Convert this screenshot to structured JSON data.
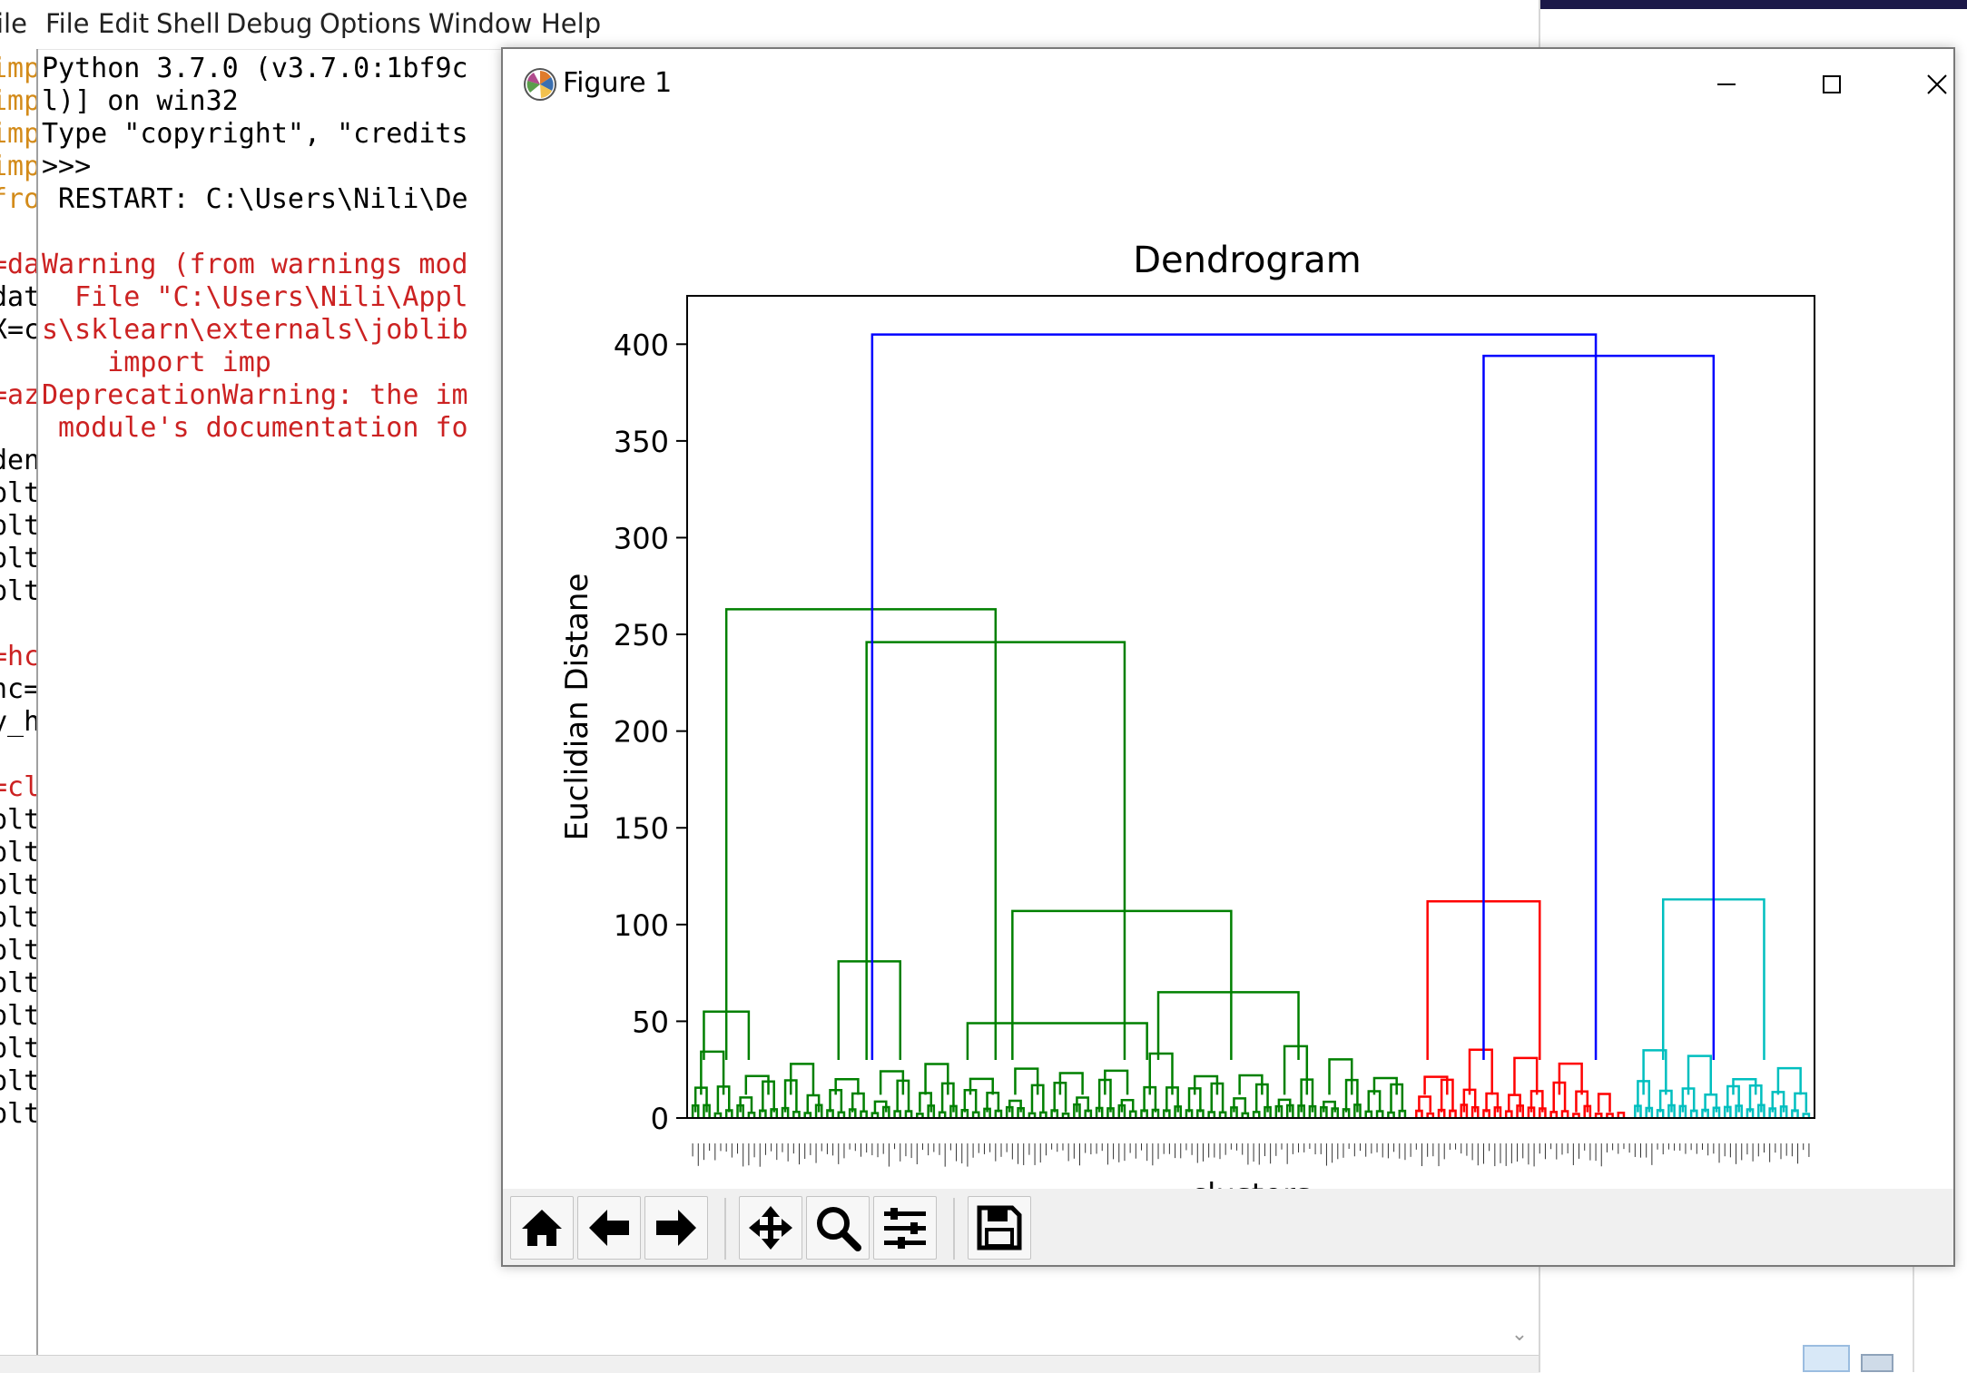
{
  "shell": {
    "menu": [
      "ile",
      "File",
      "Edit",
      "Shell",
      "Debug",
      "Options",
      "Window",
      "Help"
    ],
    "gutter": [
      {
        "text": "imp",
        "color": "orange"
      },
      {
        "text": "imp",
        "color": "orange"
      },
      {
        "text": "imp",
        "color": "orange"
      },
      {
        "text": "imp",
        "color": "orange"
      },
      {
        "text": "fro",
        "color": "orange"
      },
      {
        "text": "",
        "color": "black"
      },
      {
        "text": "=da",
        "color": "red"
      },
      {
        "text": "dat",
        "color": "black"
      },
      {
        "text": "X=c",
        "color": "black"
      },
      {
        "text": "",
        "color": "black"
      },
      {
        "text": "=az",
        "color": "red"
      },
      {
        "text": "",
        "color": "black"
      },
      {
        "text": "den",
        "color": "black"
      },
      {
        "text": "plt",
        "color": "black"
      },
      {
        "text": "plt",
        "color": "black"
      },
      {
        "text": "plt",
        "color": "black"
      },
      {
        "text": "plt",
        "color": "black"
      },
      {
        "text": "",
        "color": "black"
      },
      {
        "text": "=hc",
        "color": "red"
      },
      {
        "text": "hc=",
        "color": "black"
      },
      {
        "text": "y_h",
        "color": "black"
      },
      {
        "text": "",
        "color": "black"
      },
      {
        "text": "=cl",
        "color": "red"
      },
      {
        "text": "plt",
        "color": "black"
      },
      {
        "text": "plt",
        "color": "black"
      },
      {
        "text": "plt",
        "color": "black"
      },
      {
        "text": "plt",
        "color": "black"
      },
      {
        "text": "plt",
        "color": "black"
      },
      {
        "text": "plt",
        "color": "black"
      },
      {
        "text": "plt",
        "color": "black"
      },
      {
        "text": "plt",
        "color": "black"
      },
      {
        "text": "plt",
        "color": "black"
      },
      {
        "text": "plt",
        "color": "black"
      }
    ],
    "lines": [
      {
        "text": "Python 3.7.0 (v3.7.0:1bf9c",
        "color": "black"
      },
      {
        "text": "l)] on win32",
        "color": "black"
      },
      {
        "text": "Type \"copyright\", \"credits",
        "color": "black"
      },
      {
        "text": ">>> ",
        "color": "black"
      },
      {
        "text": " RESTART: C:\\Users\\Nili\\De",
        "color": "black"
      },
      {
        "text": "",
        "color": "black"
      },
      {
        "text": "Warning (from warnings mod",
        "color": "red"
      },
      {
        "text": "  File \"C:\\Users\\Nili\\Appl",
        "color": "red"
      },
      {
        "text": "s\\sklearn\\externals\\joblib",
        "color": "red"
      },
      {
        "text": "    import imp",
        "color": "red"
      },
      {
        "text": "DeprecationWarning: the im",
        "color": "red"
      },
      {
        "text": " module's documentation fo",
        "color": "red"
      }
    ]
  },
  "figure": {
    "window_title": "Figure 1",
    "controls": {
      "minimize": "minimize",
      "maximize": "maximize",
      "close": "close"
    },
    "toolbar": [
      "home-icon",
      "back-arrow-icon",
      "forward-arrow-icon",
      "pan-icon",
      "zoom-icon",
      "configure-subplots-icon",
      "save-icon"
    ]
  },
  "chart_data": {
    "type": "dendrogram",
    "title": "Dendrogram",
    "xlabel": "clusters",
    "ylabel": "Euclidian Distane",
    "ylim": [
      0,
      425
    ],
    "yticks": [
      0,
      50,
      100,
      150,
      200,
      250,
      300,
      350,
      400
    ],
    "leaf_count": 200,
    "colors": {
      "green": "#008000",
      "red": "#ff0000",
      "cyan": "#00bfbf",
      "blue": "#0000ff"
    },
    "clusters": [
      {
        "color": "green",
        "leaf_range": [
          0,
          129
        ]
      },
      {
        "color": "red",
        "leaf_range": [
          129,
          168
        ]
      },
      {
        "color": "cyan",
        "leaf_range": [
          168,
          200
        ]
      }
    ],
    "merges": [
      {
        "color": "green",
        "x": [
          2,
          10
        ],
        "height": 55
      },
      {
        "color": "green",
        "x": [
          26,
          37
        ],
        "height": 81
      },
      {
        "color": "green",
        "x": [
          49,
          81
        ],
        "height": 49
      },
      {
        "color": "green",
        "x": [
          83,
          108
        ],
        "height": 65
      },
      {
        "color": "green",
        "x": [
          57,
          96
        ],
        "height": 107
      },
      {
        "color": "green",
        "x": [
          31,
          77
        ],
        "height": 246
      },
      {
        "color": "green",
        "x": [
          6,
          54
        ],
        "height": 263
      },
      {
        "color": "red",
        "x": [
          131,
          151
        ],
        "height": 112
      },
      {
        "color": "cyan",
        "x": [
          173,
          191
        ],
        "height": 113
      },
      {
        "color": "blue",
        "x": [
          141,
          182
        ],
        "height": 394
      },
      {
        "color": "blue",
        "x": [
          32,
          161
        ],
        "height": 405
      }
    ]
  }
}
